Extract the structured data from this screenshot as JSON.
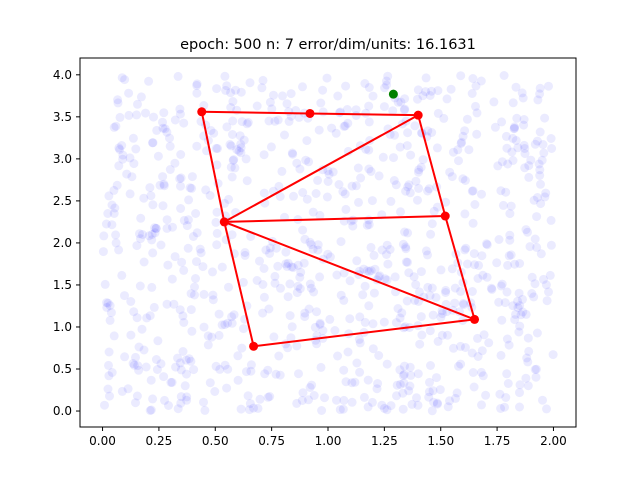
{
  "chart_data": {
    "type": "scatter",
    "title": "epoch: 500 n: 7 error/dim/units: 16.1631",
    "xlim": [
      -0.1,
      2.1
    ],
    "ylim": [
      -0.19,
      4.2
    ],
    "xticks": [
      0.0,
      0.25,
      0.5,
      0.75,
      1.0,
      1.25,
      1.5,
      1.75,
      2.0
    ],
    "xtick_labels": [
      "0.00",
      "0.25",
      "0.50",
      "0.75",
      "1.00",
      "1.25",
      "1.50",
      "1.75",
      "2.00"
    ],
    "yticks": [
      0.0,
      0.5,
      1.0,
      1.5,
      2.0,
      2.5,
      3.0,
      3.5,
      4.0
    ],
    "ytick_labels": [
      "0.0",
      "0.5",
      "1.0",
      "1.5",
      "2.0",
      "2.5",
      "3.0",
      "3.5",
      "4.0"
    ],
    "grid": false,
    "legend": "none",
    "colors": {
      "samples": "#0000ff",
      "nodes": "#ff0000",
      "edges": "#ff0000",
      "marker": "#008000"
    },
    "background_samples": {
      "description_visible": "uniformly distributed semi-transparent blue points",
      "count_approx": 900,
      "x_range": [
        0.0,
        2.0
      ],
      "y_range": [
        0.0,
        4.0
      ],
      "alpha": 0.08
    },
    "nodes": [
      {
        "x": 0.44,
        "y": 3.56
      },
      {
        "x": 0.92,
        "y": 3.54
      },
      {
        "x": 1.4,
        "y": 3.52
      },
      {
        "x": 0.54,
        "y": 2.25
      },
      {
        "x": 1.52,
        "y": 2.32
      },
      {
        "x": 1.65,
        "y": 1.09
      },
      {
        "x": 0.67,
        "y": 0.77
      }
    ],
    "edges": [
      [
        0,
        1
      ],
      [
        1,
        2
      ],
      [
        0,
        3
      ],
      [
        3,
        2
      ],
      [
        2,
        4
      ],
      [
        3,
        4
      ],
      [
        4,
        5
      ],
      [
        3,
        5
      ],
      [
        5,
        6
      ],
      [
        6,
        3
      ]
    ],
    "marker_point": {
      "x": 1.29,
      "y": 3.77
    }
  }
}
